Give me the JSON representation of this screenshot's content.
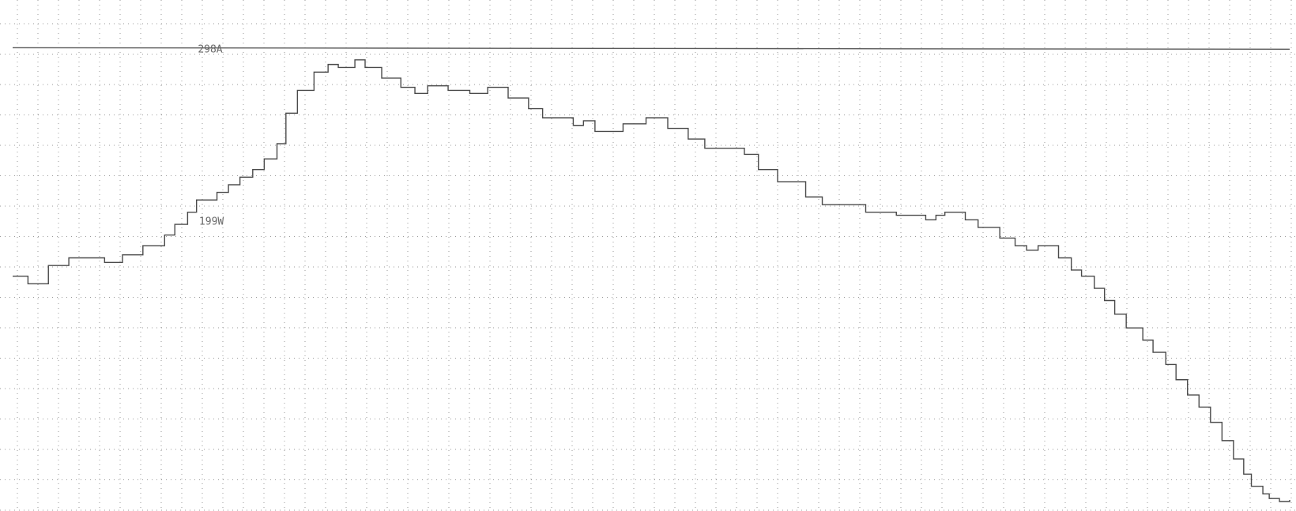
{
  "chart_data": {
    "type": "line",
    "title": "",
    "xlabel": "",
    "ylabel": "",
    "grid": true,
    "xlim": [
      0,
      100
    ],
    "ylim": [
      0,
      320
    ],
    "annotations": [
      {
        "text": "298A",
        "x": 14.5,
        "y": 298
      },
      {
        "text": "199W",
        "x": 14.6,
        "y": 185
      }
    ],
    "series": [
      {
        "style": "step",
        "x": [
          0,
          1.2,
          2.8,
          4.4,
          7.2,
          8.6,
          10.2,
          11.9,
          12.7,
          13.7,
          14.4,
          16.0,
          16.9,
          17.8,
          18.8,
          19.7,
          20.7,
          21.4,
          22.3,
          23.6,
          24.7,
          25.5,
          26.8,
          27.6,
          28.9,
          30.4,
          31.5,
          32.5,
          34.1,
          35.8,
          37.2,
          38.8,
          40.4,
          41.5,
          43.9,
          44.7,
          45.6,
          47.8,
          49.6,
          51.3,
          52.9,
          54.2,
          56.2,
          57.3,
          58.4,
          59.9,
          62.1,
          63.4,
          64.6,
          66.8,
          69.2,
          71.5,
          72.3,
          73.0,
          74.6,
          75.6,
          77.3,
          78.5,
          79.4,
          80.3,
          81.9,
          82.9,
          83.7,
          84.7,
          85.5,
          86.3,
          87.2,
          88.5,
          89.3,
          90.3,
          91.1,
          92.0,
          92.9,
          93.8,
          94.7,
          95.6,
          96.4,
          97.0,
          97.9,
          98.4,
          99.2,
          99.6
        ],
        "y": [
          148,
          143,
          155,
          160,
          157,
          162,
          168,
          175,
          182,
          190,
          198,
          203,
          208,
          213,
          218,
          225,
          235,
          255,
          270,
          282,
          287,
          285,
          290,
          285,
          278,
          272,
          268,
          273,
          270,
          268,
          272,
          265,
          258,
          252,
          247,
          250,
          243,
          248,
          252,
          245,
          238,
          232,
          232,
          228,
          218,
          210,
          200,
          195,
          195,
          190,
          188,
          185,
          188,
          190,
          185,
          180,
          173,
          168,
          165,
          168,
          160,
          152,
          148,
          140,
          132,
          123,
          114,
          106,
          98,
          90,
          80,
          70,
          62,
          52,
          40,
          28,
          18,
          10,
          5,
          2,
          0,
          0
        ]
      },
      {
        "style": "line",
        "x": [
          0,
          100
        ],
        "y": [
          298,
          297
        ]
      }
    ]
  }
}
